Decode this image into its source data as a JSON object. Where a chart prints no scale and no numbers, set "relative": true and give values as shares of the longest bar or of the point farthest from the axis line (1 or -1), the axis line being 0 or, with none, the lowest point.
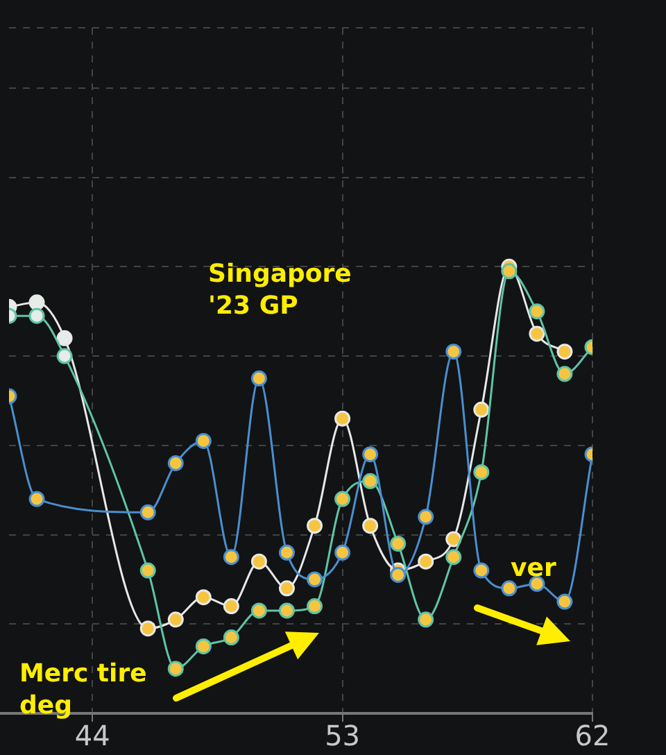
{
  "chart_data": {
    "type": "line",
    "relative": true,
    "x": [
      41,
      42,
      43,
      44,
      45,
      46,
      47,
      48,
      49,
      50,
      51,
      52,
      53,
      54,
      55,
      56,
      57,
      58,
      59,
      60,
      61,
      62
    ],
    "xlim": [
      41,
      62
    ],
    "xticks": [
      44,
      53,
      62
    ],
    "series": [
      {
        "color": "#4a8fd0",
        "colors": [
          "#f5c542",
          "#f5c542",
          "#f5c542",
          "#f5c542",
          "#f5c542",
          "#f5c542",
          "#f5c542",
          "#f5c542",
          "#f5c542",
          "#f5c542",
          "#f5c542",
          "#f5c542",
          "#f5c542",
          "#f5c542",
          "#f5c542",
          "#f5c542",
          "#f5c542",
          "#f5c542",
          "#f5c542",
          "#f5c542",
          "#f5c542",
          "#f5c542"
        ],
        "values": [
          0.71,
          0.48,
          null,
          null,
          null,
          0.45,
          0.56,
          0.61,
          0.35,
          0.75,
          0.36,
          0.3,
          0.36,
          0.58,
          0.31,
          0.44,
          0.81,
          0.32,
          0.28,
          0.29,
          0.25,
          0.58
        ]
      },
      {
        "color": "#5fc4a8",
        "colors": [
          "#e6ece8",
          "#e6ece8",
          "#e6ece8",
          "#f5c542",
          "#f5c542",
          "#f5c542",
          "#f5c542",
          "#f5c542",
          "#f5c542",
          "#f5c542",
          "#f5c542",
          "#f5c542",
          "#f5c542",
          "#f5c542",
          "#f5c542",
          "#f5c542",
          "#f5c542",
          "#f5c542",
          "#f5c542",
          "#f5c542",
          "#f5c542",
          "#f5c542"
        ],
        "values": [
          0.89,
          0.89,
          0.8,
          null,
          null,
          0.32,
          0.1,
          0.15,
          0.17,
          0.23,
          0.23,
          0.24,
          0.48,
          0.52,
          0.38,
          0.21,
          0.35,
          0.54,
          0.99,
          0.9,
          0.76,
          0.82
        ]
      },
      {
        "color": "#e8e8e8",
        "colors": [
          "#e6ece8",
          "#e6ece8",
          "#e6ece8",
          "#f5c542",
          "#f5c542",
          "#f5c542",
          "#f5c542",
          "#f5c542",
          "#f5c542",
          "#f5c542",
          "#f5c542",
          "#f5c542",
          "#f5c542",
          "#f5c542",
          "#f5c542",
          "#f5c542",
          "#f5c542",
          "#f5c542",
          "#f5c542",
          "#f5c542",
          "#f5c542",
          "#f5c542"
        ],
        "values": [
          0.91,
          0.92,
          0.84,
          null,
          null,
          0.19,
          0.21,
          0.26,
          0.24,
          0.34,
          0.28,
          0.42,
          0.66,
          0.42,
          0.32,
          0.34,
          0.39,
          0.68,
          1,
          0.85,
          0.81,
          null
        ]
      }
    ],
    "annotations": [
      "Singapore\n'23 GP",
      "Merc tire\ndeg",
      "ver"
    ],
    "grid": true,
    "legend": false,
    "marker": "circle"
  }
}
